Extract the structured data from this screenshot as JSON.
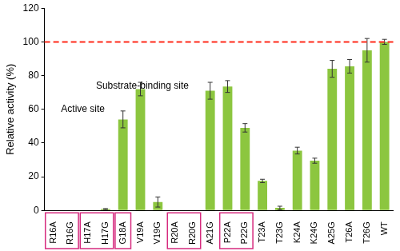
{
  "chart_data": {
    "type": "bar",
    "y_label": "Relative activity (%)",
    "categories": [
      "R16A",
      "R16G",
      "H17A",
      "H17G",
      "G18A",
      "V19A",
      "V19G",
      "R20A",
      "R20G",
      "A21G",
      "P22A",
      "P22G",
      "T23A",
      "T23G",
      "K24A",
      "K24G",
      "A25G",
      "T26A",
      "T26G",
      "WT"
    ],
    "values": [
      0,
      0,
      0,
      0.8,
      54,
      72,
      5,
      0,
      0,
      71,
      73.5,
      49,
      17.5,
      1.5,
      35.5,
      29.5,
      84,
      85.5,
      95,
      100
    ],
    "errors": [
      0,
      0,
      0,
      0.3,
      5,
      4,
      3,
      0,
      0,
      5,
      3.5,
      2.5,
      1,
      1,
      2,
      1.5,
      5,
      4,
      7,
      1.5
    ],
    "color": "#8cc63f",
    "ylim": [
      0,
      120
    ],
    "yticks": [
      0,
      20,
      40,
      60,
      80,
      100,
      120
    ],
    "grid": false,
    "reference_line": {
      "value": 100,
      "color": "#ff2a1a",
      "line_style": "dashed"
    },
    "annotations": [
      {
        "text": "Active site",
        "x": "R16G",
        "y": 60
      },
      {
        "text": "Substrate-binding site",
        "x": "H17G",
        "y": 74
      }
    ],
    "boxed_groups": [
      [
        "R16A",
        "R16G"
      ],
      [
        "H17A",
        "H17G"
      ],
      [
        "G18A"
      ],
      [
        "R20A",
        "R20G"
      ],
      [
        "P22A",
        "P22G"
      ]
    ],
    "box_color": "#d62a7e"
  }
}
